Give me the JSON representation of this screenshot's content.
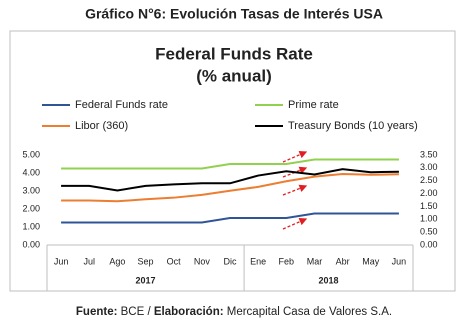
{
  "page_title": "Gráfico N°6: Evolución Tasas de Interés USA",
  "chart_data": {
    "type": "line",
    "title": "Federal Funds Rate",
    "subtitle": "(% anual)",
    "categories": [
      "Jun",
      "Jul",
      "Ago",
      "Sep",
      "Oct",
      "Nov",
      "Dic",
      "Ene",
      "Feb",
      "Mar",
      "Abr",
      "May",
      "Jun"
    ],
    "x_groups": [
      {
        "label": "2017",
        "span": 7
      },
      {
        "label": "2018",
        "span": 6
      }
    ],
    "series": [
      {
        "name": "Federal Funds rate",
        "color": "#2f5597",
        "values": [
          1.25,
          1.25,
          1.25,
          1.25,
          1.25,
          1.25,
          1.5,
          1.5,
          1.5,
          1.75,
          1.75,
          1.75,
          1.75
        ]
      },
      {
        "name": "Prime rate",
        "color": "#92d050",
        "values": [
          4.25,
          4.25,
          4.25,
          4.25,
          4.25,
          4.25,
          4.5,
          4.5,
          4.5,
          4.75,
          4.75,
          4.75,
          4.75
        ]
      },
      {
        "name": "Libor (360)",
        "color": "#ed7d31",
        "axis": "y2",
        "values": [
          1.73,
          1.73,
          1.7,
          1.78,
          1.84,
          1.95,
          2.11,
          2.26,
          2.48,
          2.66,
          2.76,
          2.73,
          2.75
        ]
      },
      {
        "name": "Treasury Bonds (10 years)",
        "color": "#000000",
        "axis": "y2",
        "values": [
          2.3,
          2.3,
          2.12,
          2.3,
          2.36,
          2.4,
          2.4,
          2.7,
          2.87,
          2.74,
          2.95,
          2.83,
          2.85
        ]
      }
    ],
    "ylim": [
      0,
      5
    ],
    "yticks": [
      {
        "value": 0,
        "label": "0.00"
      },
      {
        "value": 1,
        "label": "1.00"
      },
      {
        "value": 2,
        "label": "2.00"
      },
      {
        "value": 3,
        "label": "3.00"
      },
      {
        "value": 4,
        "label": "4.00"
      },
      {
        "value": 5,
        "label": "5.00"
      }
    ],
    "y2lim": [
      0,
      3.5
    ],
    "y2ticks": [
      {
        "value": 0,
        "label": "0.00"
      },
      {
        "value": 0.5,
        "label": "0.50"
      },
      {
        "value": 1,
        "label": "1.00"
      },
      {
        "value": 1.5,
        "label": "1.50"
      },
      {
        "value": 2,
        "label": "2.00"
      },
      {
        "value": 2.5,
        "label": "2.50"
      },
      {
        "value": 3,
        "label": "3.00"
      },
      {
        "value": 3.5,
        "label": "3.50"
      }
    ],
    "grid": false
  },
  "footer": {
    "source_label": "Fuente:",
    "source": "BCE /",
    "credit_label": "Elaboración:",
    "credit": "Mercapital Casa de Valores S.A."
  }
}
